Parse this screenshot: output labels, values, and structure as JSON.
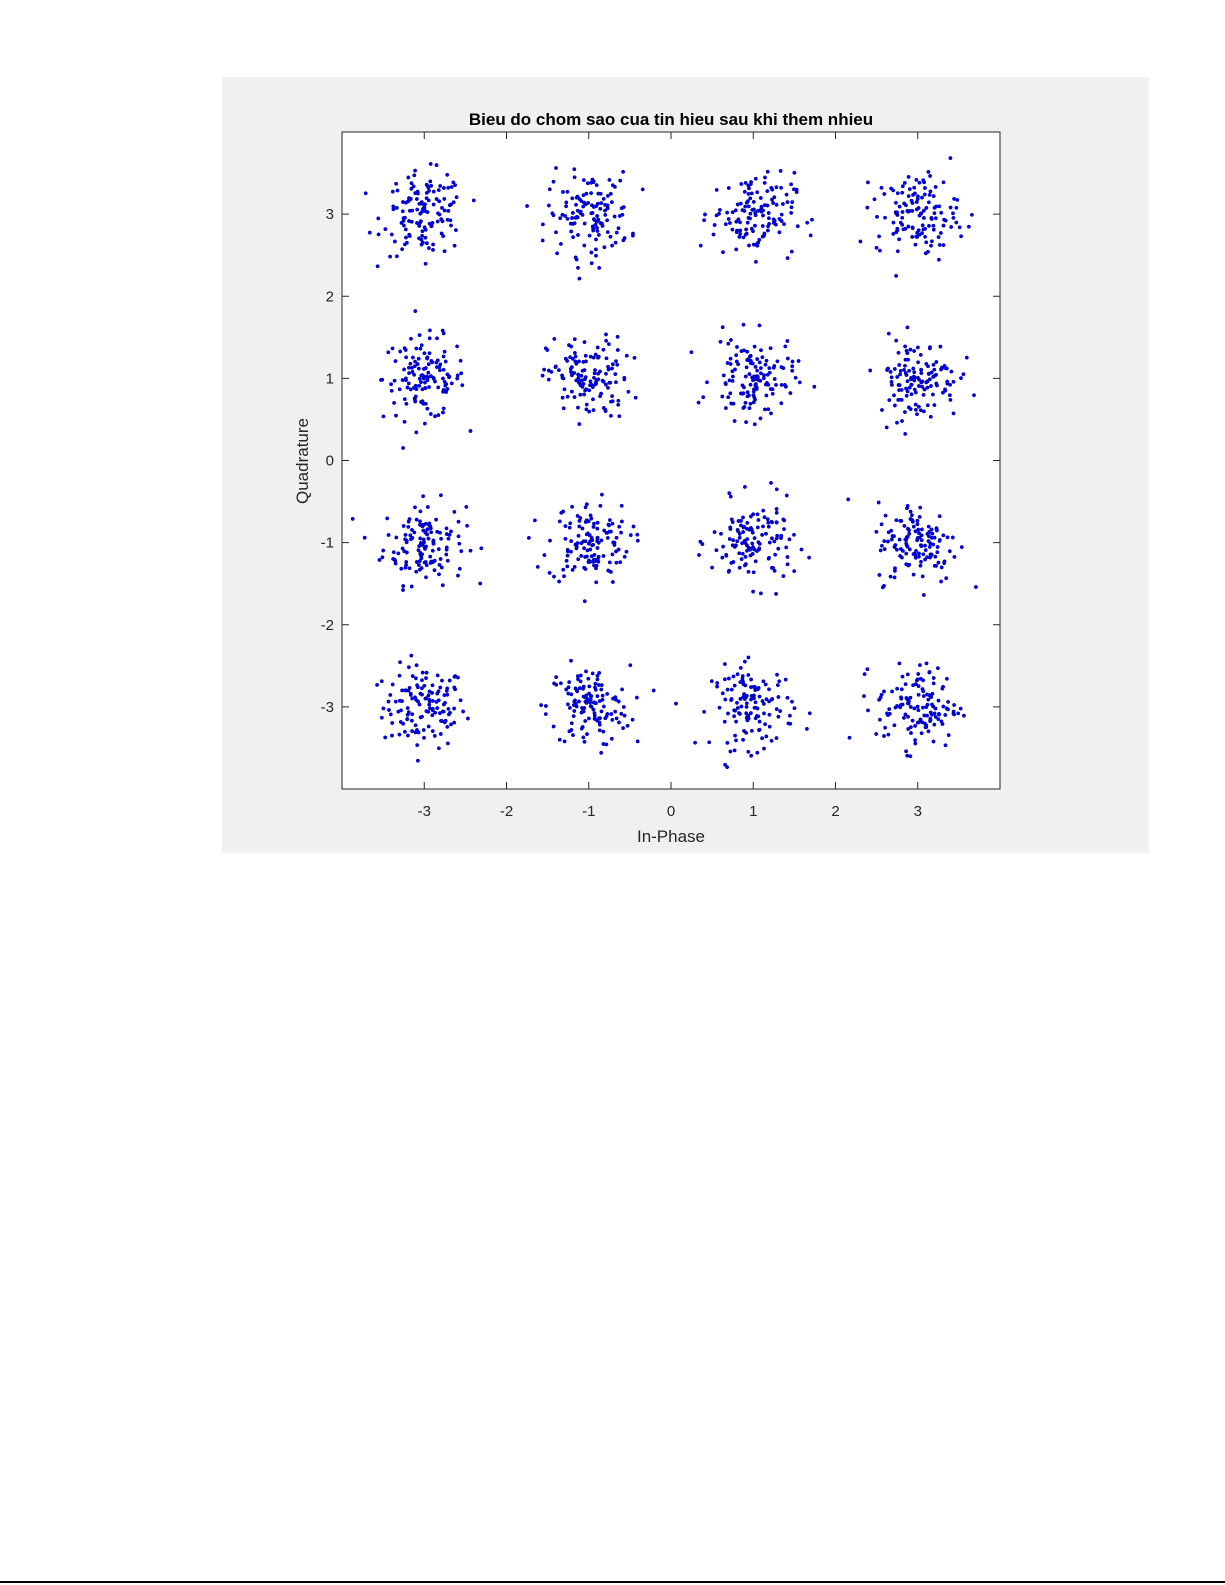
{
  "chart_data": {
    "type": "scatter",
    "title": "Bieu do chom sao cua tin hieu sau khi them nhieu",
    "xlabel": "In-Phase",
    "ylabel": "Quadrature",
    "xlim": [
      -4,
      4
    ],
    "ylim": [
      -4,
      4
    ],
    "xticks": [
      -3,
      -2,
      -1,
      0,
      1,
      2,
      3
    ],
    "yticks": [
      -3,
      -2,
      -1,
      0,
      1,
      2,
      3
    ],
    "grid": false,
    "legend": "none",
    "marker_color": "#0000ff",
    "marker_edge_color": "#000080",
    "constellation": "16-QAM",
    "symbol_points_x": [
      -3,
      -1,
      1,
      3
    ],
    "symbol_points_y": [
      -3,
      -1,
      1,
      3
    ],
    "noise_std_estimate": 0.25,
    "points_per_symbol_estimate": 130
  }
}
